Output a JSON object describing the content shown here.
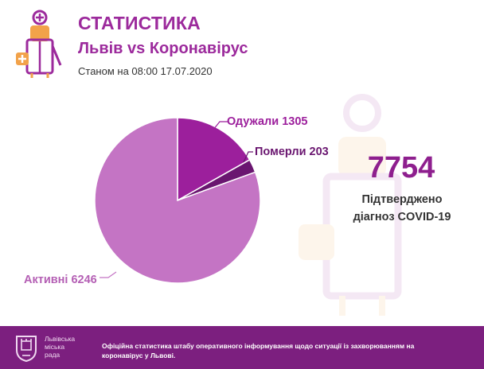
{
  "header": {
    "title": "СТАТИСТИКА",
    "subtitle": "Львів vs Коронавірус",
    "as_of": "Станом на 08:00 17.07.2020"
  },
  "colors": {
    "accent": "#9c2a9c",
    "active": "#c474c4",
    "recovered": "#9c1f9c",
    "deaths": "#6a1670",
    "footer": "#7c1f7f"
  },
  "chart_data": {
    "type": "pie",
    "categories": [
      "Одужали",
      "Померли",
      "Активні"
    ],
    "values": [
      1305,
      203,
      6246
    ],
    "labels": [
      "Одужали 1305",
      "Померли 203",
      "Активні 6246"
    ]
  },
  "summary": {
    "total": "7754",
    "caption_line1": "Підтверджено",
    "caption_line2": "діагноз COVID-19"
  },
  "footer": {
    "city_line1": "Львівська",
    "city_line2": "міська",
    "city_line3": "рада",
    "note": "Офіційна статистика штабу оперативного інформування щодо ситуації із захворюванням на коронавірус у Львові."
  }
}
